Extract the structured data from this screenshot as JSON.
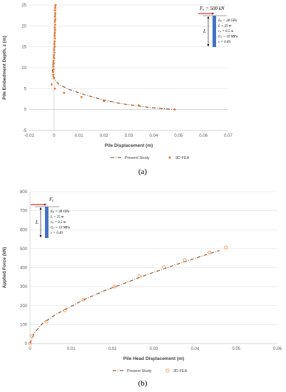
{
  "chart_data": [
    {
      "type": "scatter",
      "caption": "(a)",
      "xlabel": "Pile Displacement (m)",
      "ylabel": "Pile Embedment Depth, z (m)",
      "xlim": [
        -0.01,
        0.07
      ],
      "ylim": [
        -5,
        25
      ],
      "x_ticks": [
        "-0.01",
        "0",
        "0.01",
        "0.02",
        "0.03",
        "0.04",
        "0.05",
        "0.06",
        "0.07"
      ],
      "y_ticks": [
        "-5",
        "0",
        "5",
        "10",
        "15",
        "20",
        "25"
      ],
      "legend_position": "bottom",
      "series": [
        {
          "name": "Present Study",
          "style": "dash-dot line",
          "color": "#7a3b12",
          "points": [
            [
              0.0005,
              25
            ],
            [
              0.0004,
              22
            ],
            [
              0.0003,
              19
            ],
            [
              0.0001,
              16
            ],
            [
              -0.0002,
              13
            ],
            [
              -0.0006,
              10
            ],
            [
              -0.0008,
              8.5
            ],
            [
              0.0,
              7.2
            ],
            [
              0.002,
              6.0
            ],
            [
              0.006,
              4.8
            ],
            [
              0.012,
              3.6
            ],
            [
              0.019,
              2.4
            ],
            [
              0.026,
              1.5
            ],
            [
              0.033,
              0.9
            ],
            [
              0.04,
              0.4
            ],
            [
              0.0485,
              0
            ]
          ]
        },
        {
          "name": "3D FEA",
          "style": "filled circle",
          "color": "#ed7d31",
          "points": [
            [
              0.0006,
              25
            ],
            [
              0.0005,
              24.3
            ],
            [
              0.0004,
              23.7
            ],
            [
              0.0005,
              23
            ],
            [
              0.0004,
              22.3
            ],
            [
              0.0005,
              21.6
            ],
            [
              0.0003,
              21
            ],
            [
              0.0004,
              20.3
            ],
            [
              0.0003,
              19.6
            ],
            [
              0.0004,
              19
            ],
            [
              0.0003,
              18.3
            ],
            [
              0.0002,
              17.6
            ],
            [
              0.0003,
              17
            ],
            [
              0.0002,
              16.3
            ],
            [
              0.0001,
              15.6
            ],
            [
              0.0002,
              15
            ],
            [
              0.0,
              14.3
            ],
            [
              0.0001,
              13.6
            ],
            [
              -0.0001,
              13
            ],
            [
              0.0,
              12.3
            ],
            [
              -0.0002,
              11.6
            ],
            [
              -0.0001,
              11
            ],
            [
              -0.0003,
              10.3
            ],
            [
              -0.0002,
              9.6
            ],
            [
              -0.0004,
              9
            ],
            [
              -0.0003,
              8.3
            ],
            [
              0.0,
              7.6
            ],
            [
              -0.001,
              6
            ],
            [
              0.0003,
              5
            ],
            [
              0.004,
              4
            ],
            [
              0.011,
              3
            ],
            [
              0.02,
              2
            ],
            [
              0.034,
              1
            ],
            [
              0.0485,
              0
            ]
          ]
        }
      ],
      "inset": {
        "force": "Fₐ = 500 kN",
        "length_label": "L",
        "props": [
          "Eₚ = 28 GPa",
          "L = 25 m",
          "rₚ = 0.5 m",
          "Gₛ = 10 MPa",
          "ν = 0.49"
        ]
      }
    },
    {
      "type": "scatter",
      "caption": "(b)",
      "xlabel": "Pile Head Displacement (m)",
      "ylabel": "Applied Force (kN)",
      "xlim": [
        0,
        0.06
      ],
      "ylim": [
        0,
        800
      ],
      "x_ticks": [
        "0",
        "0.01",
        "0.02",
        "0.03",
        "0.04",
        "0.05",
        "0.06"
      ],
      "y_ticks": [
        "0",
        "100",
        "200",
        "300",
        "400",
        "500",
        "600",
        "700",
        "800"
      ],
      "legend_position": "bottom",
      "series": [
        {
          "name": "Present Study",
          "style": "dash-dot line",
          "color": "#7a3b12",
          "points": [
            [
              0,
              0
            ],
            [
              0.001,
              55
            ],
            [
              0.003,
              105
            ],
            [
              0.006,
              150
            ],
            [
              0.009,
              185
            ],
            [
              0.013,
              230
            ],
            [
              0.018,
              278
            ],
            [
              0.023,
              318
            ],
            [
              0.028,
              360
            ],
            [
              0.033,
              398
            ],
            [
              0.038,
              435
            ],
            [
              0.043,
              470
            ],
            [
              0.046,
              490
            ]
          ]
        },
        {
          "name": "3D FEA",
          "style": "open circle",
          "color": "#ed7d31",
          "points": [
            [
              0,
              0
            ],
            [
              0.0005,
              40
            ],
            [
              0.004,
              115
            ],
            [
              0.0085,
              175
            ],
            [
              0.013,
              232
            ],
            [
              0.0205,
              300
            ],
            [
              0.0265,
              355
            ],
            [
              0.0325,
              403
            ],
            [
              0.0375,
              440
            ],
            [
              0.0435,
              480
            ],
            [
              0.0475,
              505
            ]
          ]
        }
      ],
      "inset": {
        "force": "Fₐ",
        "length_label": "L",
        "props": [
          "Eₚ = 28 GPa",
          "L = 25 m",
          "rₚ = 0.5 m",
          "Gₛ = 10 MPa",
          "ν = 0.49"
        ]
      }
    }
  ]
}
